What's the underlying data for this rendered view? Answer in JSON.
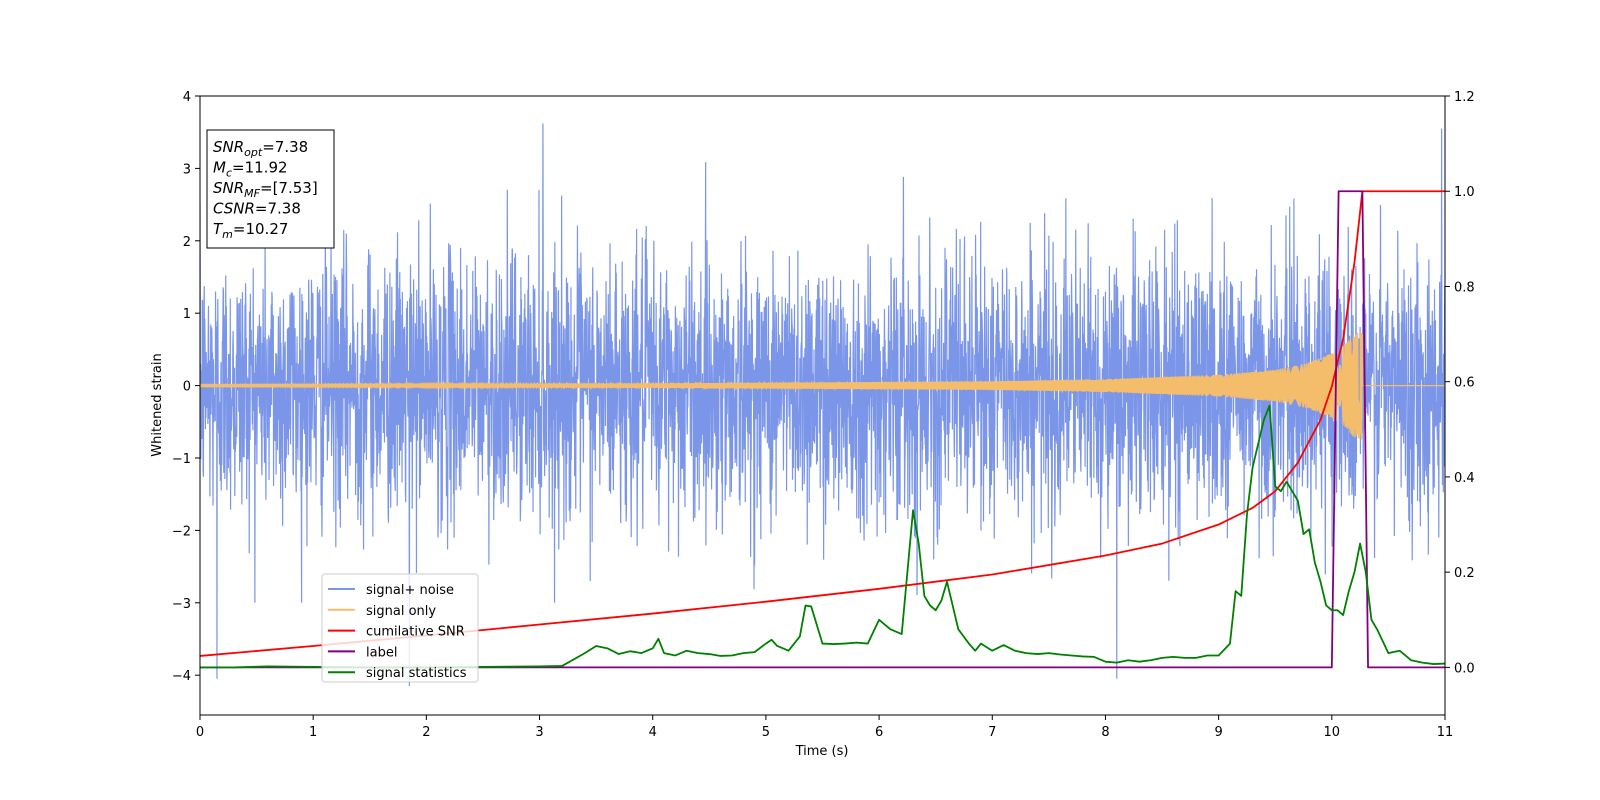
{
  "chart_data": {
    "type": "line",
    "title": "",
    "xlabel": "Time (s)",
    "ylabel": "Whitened strain",
    "ylabel_right": "",
    "xlim": [
      0,
      11
    ],
    "ylim": [
      -4.55,
      4.0
    ],
    "ylim_right": [
      -0.1,
      1.2
    ],
    "x_ticks": [
      0,
      1,
      2,
      3,
      4,
      5,
      6,
      7,
      8,
      9,
      10,
      11
    ],
    "y_ticks": [
      -4,
      -3,
      -2,
      -1,
      0,
      1,
      2,
      3,
      4
    ],
    "y_ticks_right": [
      0.0,
      0.2,
      0.4,
      0.6,
      0.8,
      1.0,
      1.2
    ],
    "y_ticks_right_labels": [
      "0.0",
      "0.2",
      "0.4",
      "0.6",
      "0.8",
      "1.0",
      "1.2"
    ],
    "grid": false,
    "legend_position": "lower-left",
    "annotation": {
      "lines": [
        {
          "base": "SNR",
          "sub": "opt",
          "value": "=7.38"
        },
        {
          "base": "M",
          "sub": "c",
          "value": "=11.92"
        },
        {
          "base": "SNR",
          "sub": "MF",
          "value": "=[7.53]"
        },
        {
          "base": "CSNR",
          "sub": "",
          "value": "=7.38"
        },
        {
          "base": "T",
          "sub": "m",
          "value": "=10.27"
        }
      ]
    },
    "series": [
      {
        "name": "signal+ noise",
        "axis": "left",
        "color": "#7b96e8",
        "kind": "noise-strain",
        "sample_rate_hz": 400,
        "amplitude_envelope": {
          "x": [
            0,
            11
          ],
          "y": [
            1.5,
            1.5
          ]
        },
        "extreme_peaks": {
          "x": [
            0.15,
            1.85,
            3.03,
            8.1,
            10.97
          ],
          "y": [
            -4.05,
            -4.15,
            3.62,
            -4.05,
            3.55
          ]
        }
      },
      {
        "name": "signal only",
        "axis": "left",
        "color": "#f4bd6c",
        "kind": "chirp",
        "merger_time": 10.27,
        "amplitude": {
          "x": [
            0,
            4,
            7,
            8,
            9,
            9.5,
            9.8,
            10.0,
            10.1,
            10.2,
            10.27
          ],
          "y": [
            0.015,
            0.03,
            0.06,
            0.09,
            0.15,
            0.22,
            0.32,
            0.45,
            0.55,
            0.72,
            0.75
          ]
        }
      },
      {
        "name": "cumilative SNR",
        "axis": "right",
        "color": "#ff0000",
        "x": [
          0,
          1,
          2,
          3,
          4,
          5,
          6,
          7,
          8,
          8.5,
          9,
          9.3,
          9.5,
          9.7,
          9.9,
          10.0,
          10.1,
          10.2,
          10.27,
          10.3,
          11
        ],
        "y": [
          0.024,
          0.045,
          0.067,
          0.09,
          0.113,
          0.138,
          0.165,
          0.195,
          0.235,
          0.26,
          0.3,
          0.335,
          0.37,
          0.43,
          0.52,
          0.59,
          0.69,
          0.85,
          1.0,
          1.0,
          1.0
        ]
      },
      {
        "name": "label",
        "axis": "right",
        "color": "#800080",
        "x": [
          0,
          10.0,
          10.06,
          10.27,
          10.32,
          11
        ],
        "y": [
          0.0,
          0.0,
          1.0,
          1.0,
          0.0,
          0.0
        ]
      },
      {
        "name": "signal statistics",
        "axis": "right",
        "color": "#008000",
        "x": [
          0,
          0.3,
          0.6,
          1,
          1.5,
          2,
          2.5,
          3,
          3.2,
          3.4,
          3.5,
          3.6,
          3.7,
          3.8,
          3.9,
          4.0,
          4.05,
          4.1,
          4.2,
          4.3,
          4.4,
          4.5,
          4.6,
          4.7,
          4.8,
          4.9,
          5.0,
          5.05,
          5.1,
          5.2,
          5.3,
          5.35,
          5.4,
          5.5,
          5.6,
          5.7,
          5.8,
          5.9,
          6.0,
          6.1,
          6.2,
          6.25,
          6.3,
          6.35,
          6.4,
          6.45,
          6.5,
          6.55,
          6.6,
          6.7,
          6.8,
          6.85,
          6.9,
          7.0,
          7.1,
          7.2,
          7.3,
          7.4,
          7.5,
          7.6,
          7.7,
          7.8,
          7.9,
          8.0,
          8.1,
          8.2,
          8.3,
          8.4,
          8.5,
          8.6,
          8.7,
          8.8,
          8.9,
          9.0,
          9.1,
          9.15,
          9.2,
          9.25,
          9.3,
          9.35,
          9.4,
          9.45,
          9.5,
          9.55,
          9.6,
          9.65,
          9.7,
          9.75,
          9.8,
          9.85,
          9.9,
          9.95,
          10.0,
          10.05,
          10.1,
          10.15,
          10.2,
          10.25,
          10.3,
          10.35,
          10.4,
          10.5,
          10.6,
          10.7,
          10.8,
          10.9,
          11
        ],
        "y": [
          0.0,
          0.0,
          0.002,
          0.001,
          0.0,
          0.0,
          0.001,
          0.002,
          0.003,
          0.03,
          0.045,
          0.04,
          0.028,
          0.034,
          0.03,
          0.04,
          0.06,
          0.03,
          0.025,
          0.035,
          0.03,
          0.028,
          0.024,
          0.025,
          0.03,
          0.032,
          0.05,
          0.058,
          0.045,
          0.035,
          0.065,
          0.13,
          0.128,
          0.05,
          0.049,
          0.05,
          0.052,
          0.05,
          0.1,
          0.08,
          0.07,
          0.2,
          0.33,
          0.26,
          0.15,
          0.13,
          0.12,
          0.14,
          0.18,
          0.08,
          0.048,
          0.035,
          0.05,
          0.035,
          0.047,
          0.035,
          0.03,
          0.028,
          0.03,
          0.027,
          0.025,
          0.023,
          0.022,
          0.012,
          0.01,
          0.015,
          0.012,
          0.015,
          0.02,
          0.022,
          0.02,
          0.02,
          0.025,
          0.025,
          0.05,
          0.16,
          0.15,
          0.32,
          0.42,
          0.47,
          0.52,
          0.55,
          0.38,
          0.37,
          0.39,
          0.37,
          0.35,
          0.28,
          0.29,
          0.22,
          0.18,
          0.13,
          0.12,
          0.12,
          0.11,
          0.16,
          0.2,
          0.26,
          0.2,
          0.1,
          0.08,
          0.03,
          0.035,
          0.015,
          0.01,
          0.007,
          0.008
        ]
      }
    ]
  }
}
